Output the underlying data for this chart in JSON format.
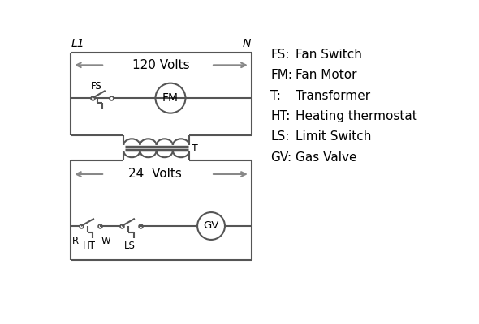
{
  "background_color": "#ffffff",
  "line_color": "#555555",
  "line_width": 1.5,
  "legend_items": [
    [
      "FS:",
      "Fan Switch"
    ],
    [
      "FM:",
      "Fan Motor"
    ],
    [
      "T:",
      "Transformer"
    ],
    [
      "HT:",
      "Heating thermostat"
    ],
    [
      "LS:",
      "Limit Switch"
    ],
    [
      "GV:",
      "Gas Valve"
    ]
  ],
  "label_L1": "L1",
  "label_N": "N",
  "label_120V": "120 Volts",
  "label_24V": "24  Volts",
  "label_T": "T",
  "label_R": "R",
  "label_W": "W",
  "label_HT": "HT",
  "label_LS": "LS",
  "arrow_color": "#888888",
  "arrow_lw": 1.5,
  "fs_label": "FS",
  "fm_label": "FM",
  "gv_label": "GV"
}
